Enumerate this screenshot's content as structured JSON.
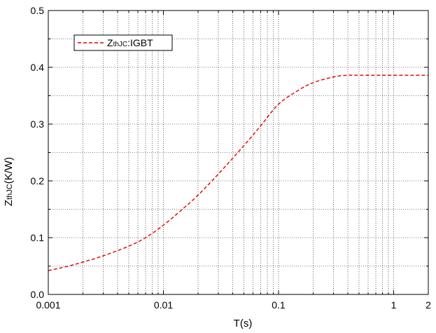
{
  "chart_data": {
    "type": "line",
    "xlabel": "T(s)",
    "ylabel_main": "Z",
    "ylabel_sub": "thJC",
    "ylabel_tail": "(K/W)",
    "x_scale": "log",
    "xlim": [
      0.001,
      2
    ],
    "ylim": [
      0.0,
      0.5
    ],
    "x_ticks": [
      {
        "value": 0.001,
        "label": "0.001"
      },
      {
        "value": 0.01,
        "label": "0.01"
      },
      {
        "value": 0.1,
        "label": "0.1"
      },
      {
        "value": 1,
        "label": "1"
      },
      {
        "value": 2,
        "label": "2"
      }
    ],
    "y_ticks": [
      {
        "value": 0.0,
        "label": "0.0"
      },
      {
        "value": 0.1,
        "label": "0.1"
      },
      {
        "value": 0.2,
        "label": "0.2"
      },
      {
        "value": 0.3,
        "label": "0.3"
      },
      {
        "value": 0.4,
        "label": "0.4"
      },
      {
        "value": 0.5,
        "label": "0.5"
      }
    ],
    "grid": "on (major and minor, dotted)",
    "legend_position": "top-left",
    "series": [
      {
        "name_main": "Z",
        "name_sub": "thJC",
        "name_tail": ":IGBT",
        "color": "#e00000",
        "line_style": "dashed",
        "x": [
          0.001,
          0.0015,
          0.002,
          0.003,
          0.005,
          0.007,
          0.01,
          0.015,
          0.02,
          0.03,
          0.05,
          0.07,
          0.1,
          0.15,
          0.2,
          0.3,
          0.4,
          0.5,
          0.7,
          1,
          1.5,
          2
        ],
        "y": [
          0.042,
          0.05,
          0.057,
          0.068,
          0.085,
          0.1,
          0.122,
          0.152,
          0.175,
          0.212,
          0.262,
          0.297,
          0.335,
          0.36,
          0.373,
          0.383,
          0.386,
          0.386,
          0.386,
          0.386,
          0.386,
          0.386
        ]
      }
    ]
  }
}
